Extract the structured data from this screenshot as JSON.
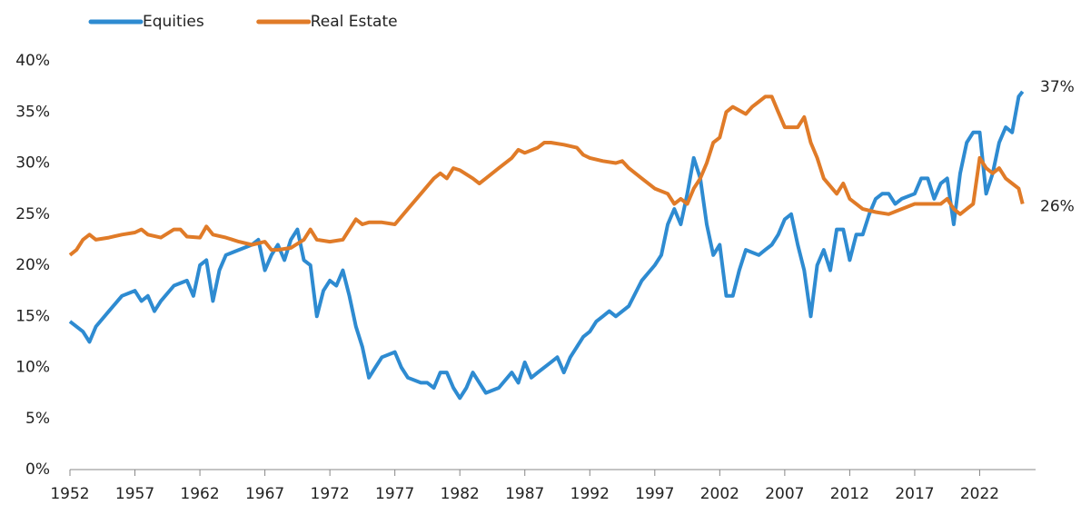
{
  "chart_data": {
    "type": "line",
    "series": [
      {
        "name": "Equities",
        "color": "#2e8bd1",
        "end_label": "37%",
        "x": [
          1952,
          1953,
          1953.5,
          1954,
          1955,
          1956,
          1957,
          1957.5,
          1958,
          1958.5,
          1959,
          1960,
          1961,
          1961.5,
          1962,
          1962.5,
          1963,
          1963.5,
          1964,
          1965,
          1966,
          1966.5,
          1967,
          1967.5,
          1968,
          1968.5,
          1969,
          1969.5,
          1970,
          1970.5,
          1971,
          1971.5,
          1972,
          1972.5,
          1973,
          1973.5,
          1974,
          1974.5,
          1975,
          1975.5,
          1976,
          1977,
          1977.5,
          1978,
          1979,
          1979.5,
          1980,
          1980.5,
          1981,
          1981.5,
          1982,
          1982.5,
          1983,
          1983.5,
          1984,
          1985,
          1986,
          1986.5,
          1987,
          1987.5,
          1988,
          1989,
          1989.5,
          1990,
          1990.5,
          1991,
          1991.5,
          1992,
          1992.5,
          1993,
          1993.5,
          1994,
          1995,
          1996,
          1997,
          1997.5,
          1998,
          1998.5,
          1999,
          1999.5,
          2000,
          2000.5,
          2001,
          2001.5,
          2002,
          2002.5,
          2003,
          2003.5,
          2004,
          2005,
          2005.5,
          2006,
          2006.5,
          2007,
          2007.5,
          2008,
          2008.5,
          2009,
          2009.5,
          2010,
          2010.5,
          2011,
          2011.5,
          2012,
          2012.5,
          2013,
          2013.5,
          2014,
          2014.5,
          2015,
          2015.5,
          2016,
          2017,
          2017.5,
          2018,
          2018.5,
          2019,
          2019.5,
          2020,
          2020.5,
          2021,
          2021.5,
          2022,
          2022.5,
          2023,
          2023.5,
          2024,
          2024.5,
          2025,
          2025.3
        ],
        "values": [
          14.5,
          13.5,
          12.5,
          14,
          15.5,
          17,
          17.5,
          16.5,
          17,
          15.5,
          16.5,
          18,
          18.5,
          17,
          20,
          20.5,
          16.5,
          19.5,
          21,
          21.5,
          22,
          22.5,
          19.5,
          21,
          22,
          20.5,
          22.5,
          23.5,
          20.5,
          20,
          15,
          17.5,
          18.5,
          18,
          19.5,
          17,
          14,
          12,
          9,
          10,
          11,
          11.5,
          10,
          9,
          8.5,
          8.5,
          8,
          9.5,
          9.5,
          8,
          7,
          8,
          9.5,
          8.5,
          7.5,
          8,
          9.5,
          8.5,
          10.5,
          9,
          9.5,
          10.5,
          11,
          9.5,
          11,
          12,
          13,
          13.5,
          14.5,
          15,
          15.5,
          15,
          16,
          18.5,
          20,
          21,
          24,
          25.5,
          24,
          27,
          30.5,
          28.5,
          24,
          21,
          22,
          17,
          17,
          19.5,
          21.5,
          21,
          21.5,
          22,
          23,
          24.5,
          25,
          22,
          19.5,
          15,
          20,
          21.5,
          19.5,
          23.5,
          23.5,
          20.5,
          23,
          23,
          25,
          26.5,
          27,
          27,
          26,
          26.5,
          27,
          28.5,
          28.5,
          26.5,
          28,
          28.5,
          24,
          29,
          32,
          33,
          33,
          27,
          29,
          32,
          33.5,
          33,
          36.5,
          37
        ]
      },
      {
        "name": "Real Estate",
        "color": "#e07b28",
        "end_label": "26%",
        "x": [
          1952,
          1952.5,
          1953,
          1953.5,
          1954,
          1955,
          1956,
          1957,
          1957.5,
          1958,
          1959,
          1960,
          1960.5,
          1961,
          1962,
          1962.5,
          1963,
          1964,
          1965,
          1966,
          1967,
          1967.5,
          1968,
          1969,
          1970,
          1970.5,
          1971,
          1972,
          1973,
          1974,
          1974.5,
          1975,
          1976,
          1977,
          1978,
          1979,
          1980,
          1980.5,
          1981,
          1981.5,
          1982,
          1983,
          1983.5,
          1984,
          1985,
          1986,
          1986.5,
          1987,
          1988,
          1988.5,
          1989,
          1990,
          1991,
          1991.5,
          1992,
          1993,
          1994,
          1994.5,
          1995,
          1996,
          1997,
          1998,
          1998.5,
          1999,
          1999.5,
          2000,
          2000.5,
          2001,
          2001.5,
          2002,
          2002.5,
          2003,
          2004,
          2004.5,
          2005,
          2005.5,
          2006,
          2006.5,
          2007,
          2008,
          2008.5,
          2009,
          2009.5,
          2010,
          2011,
          2011.5,
          2012,
          2013,
          2014,
          2015,
          2016,
          2017,
          2018,
          2019,
          2019.5,
          2020,
          2020.5,
          2021,
          2021.5,
          2022,
          2022.5,
          2023,
          2023.5,
          2024,
          2024.5,
          2025,
          2025.3
        ],
        "values": [
          21,
          21.5,
          22.5,
          23,
          22.5,
          22.7,
          23,
          23.2,
          23.5,
          23,
          22.7,
          23.5,
          23.5,
          22.8,
          22.7,
          23.8,
          23,
          22.7,
          22.3,
          22,
          22.3,
          21.5,
          21.5,
          21.7,
          22.5,
          23.5,
          22.5,
          22.3,
          22.5,
          24.5,
          24,
          24.2,
          24.2,
          24,
          25.5,
          27,
          28.5,
          29,
          28.5,
          29.5,
          29.3,
          28.5,
          28,
          28.5,
          29.5,
          30.5,
          31.3,
          31,
          31.5,
          32,
          32,
          31.8,
          31.5,
          30.8,
          30.5,
          30.2,
          30,
          30.2,
          29.5,
          28.5,
          27.5,
          27,
          26,
          26.5,
          26,
          27.5,
          28.5,
          30,
          32,
          32.5,
          35,
          35.5,
          34.8,
          35.5,
          36,
          36.5,
          36.5,
          35,
          33.5,
          33.5,
          34.5,
          32,
          30.5,
          28.5,
          27,
          28,
          26.5,
          25.5,
          25.2,
          25,
          25.5,
          26,
          26,
          26,
          26.5,
          25.5,
          25,
          25.5,
          26,
          30.5,
          29.5,
          29,
          29.5,
          28.5,
          28,
          27.5,
          26
        ]
      }
    ],
    "xlim": [
      1952,
      2026.3
    ],
    "xticks": [
      1952,
      1957,
      1962,
      1967,
      1972,
      1977,
      1982,
      1987,
      1992,
      1997,
      2002,
      2007,
      2012,
      2017,
      2022
    ],
    "ylim": [
      0,
      40
    ],
    "yticks": [
      {
        "value": 0,
        "label": "0%"
      },
      {
        "value": 5,
        "label": "5%"
      },
      {
        "value": 10,
        "label": "10%"
      },
      {
        "value": 15,
        "label": "15%"
      },
      {
        "value": 20,
        "label": "20%"
      },
      {
        "value": 25,
        "label": "25%"
      },
      {
        "value": 30,
        "label": "30%"
      },
      {
        "value": 35,
        "label": "35%"
      },
      {
        "value": 40,
        "label": "40%"
      }
    ],
    "grid": false,
    "legend": "top-left"
  }
}
